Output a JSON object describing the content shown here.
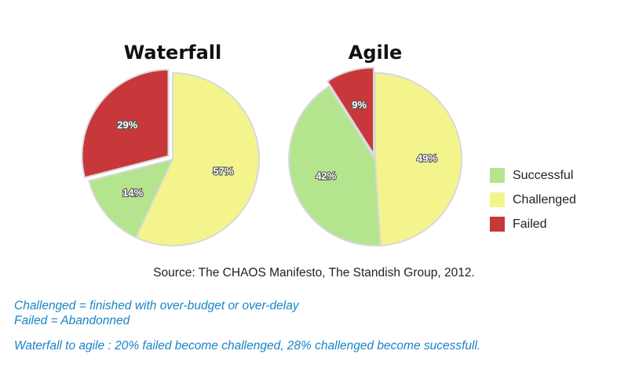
{
  "chart_data": [
    {
      "type": "pie",
      "title": "Waterfall",
      "categories": [
        "Successful",
        "Challenged",
        "Failed"
      ],
      "values": [
        14,
        57,
        29
      ],
      "labels": [
        "14%",
        "57%",
        "29%"
      ],
      "colors": [
        "#b4e58e",
        "#f4f48c",
        "#c8383a"
      ],
      "exploded": "Failed"
    },
    {
      "type": "pie",
      "title": "Agile",
      "categories": [
        "Successful",
        "Challenged",
        "Failed"
      ],
      "values": [
        42,
        49,
        9
      ],
      "labels": [
        "42%",
        "49%",
        "9%"
      ],
      "colors": [
        "#b4e58e",
        "#f4f48c",
        "#c8383a"
      ],
      "exploded": "Failed"
    }
  ],
  "legend": {
    "placement": "right",
    "items": [
      {
        "label": "Successful",
        "color": "#b4e58e"
      },
      {
        "label": "Challenged",
        "color": "#f4f48c"
      },
      {
        "label": "Failed",
        "color": "#c8383a"
      }
    ]
  },
  "source": "Source: The CHAOS Manifesto, The Standish Group, 2012.",
  "notes": {
    "line1": "Challenged = finished with over-budget or over-delay",
    "line2": "Failed = Abandonned",
    "line3": "Waterfall to agile : 20% failed become challenged, 28% challenged become sucessfull."
  }
}
